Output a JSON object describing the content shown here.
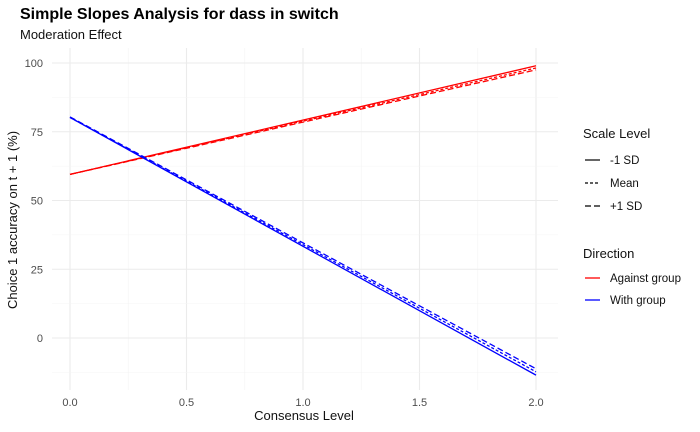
{
  "chart_data": {
    "type": "line",
    "title": "Simple Slopes Analysis for dass in switch",
    "subtitle": "Moderation Effect",
    "xlabel": "Consensus Level",
    "ylabel": "Choice 1 accuracy on t + 1 (%)",
    "xlim": [
      0,
      2
    ],
    "ylim": [
      -15,
      103
    ],
    "x_ticks": [
      0.0,
      0.5,
      1.0,
      1.5,
      2.0
    ],
    "x_tick_labels": [
      "0.0",
      "0.5",
      "1.0",
      "1.5",
      "2.0"
    ],
    "y_ticks": [
      0,
      25,
      50,
      75,
      100
    ],
    "y_tick_labels": [
      "0",
      "25",
      "50",
      "75",
      "100"
    ],
    "grid": true,
    "legend_placement": "right",
    "legends": [
      {
        "title": "Scale Level",
        "entries": [
          {
            "label": "-1 SD",
            "linetype": "solid"
          },
          {
            "label": "Mean",
            "linetype": "dotted"
          },
          {
            "label": "+1 SD",
            "linetype": "dashed"
          }
        ]
      },
      {
        "title": "Direction",
        "entries": [
          {
            "label": "Against group",
            "color": "#ff0000"
          },
          {
            "label": "With group",
            "color": "#0000ff"
          }
        ]
      }
    ],
    "series": [
      {
        "direction": "Against group",
        "scale": "-1 SD",
        "color": "#ff0000",
        "linetype": "solid",
        "x": [
          0,
          2
        ],
        "y": [
          59.5,
          99.0
        ]
      },
      {
        "direction": "Against group",
        "scale": "Mean",
        "color": "#ff0000",
        "linetype": "dotted",
        "x": [
          0,
          2
        ],
        "y": [
          59.5,
          98.2
        ]
      },
      {
        "direction": "Against group",
        "scale": "+1 SD",
        "color": "#ff0000",
        "linetype": "dashed",
        "x": [
          0,
          2
        ],
        "y": [
          59.5,
          97.5
        ]
      },
      {
        "direction": "With group",
        "scale": "-1 SD",
        "color": "#0000ff",
        "linetype": "solid",
        "x": [
          0,
          2
        ],
        "y": [
          80.2,
          -13.5
        ]
      },
      {
        "direction": "With group",
        "scale": "Mean",
        "color": "#0000ff",
        "linetype": "dotted",
        "x": [
          0,
          2
        ],
        "y": [
          80.2,
          -12.3
        ]
      },
      {
        "direction": "With group",
        "scale": "+1 SD",
        "color": "#0000ff",
        "linetype": "dashed",
        "x": [
          0,
          2
        ],
        "y": [
          80.4,
          -11.2
        ]
      }
    ]
  }
}
